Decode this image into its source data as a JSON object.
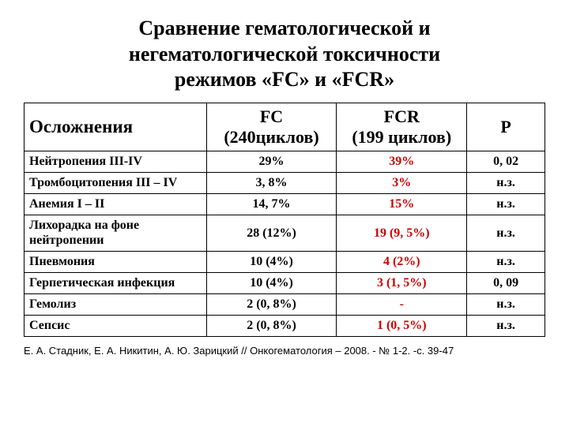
{
  "title": {
    "line1": "Сравнение гематологической и",
    "line2": "негематологической токсичности",
    "line3": "режимов «FC» и «FCR»"
  },
  "headers": {
    "complication": "Осложнения",
    "fc_line1": "FC",
    "fc_line2": "(240циклов)",
    "fcr_line1": "FCR",
    "fcr_line2": "(199 циклов)",
    "p": "Р"
  },
  "rows": [
    {
      "label": "Нейтропения III-IV",
      "fc": "29%",
      "fcr": "39%",
      "p": "0, 02"
    },
    {
      "label": "Тромбоцитопения III – IV",
      "fc": "3, 8%",
      "fcr": "3%",
      "p": "н.з."
    },
    {
      "label": "Анемия I – II",
      "fc": "14, 7%",
      "fcr": "15%",
      "p": "н.з."
    },
    {
      "label_html": "Лихорадка на фоне нейтропении",
      "justify": true,
      "fc": "28 (12%)",
      "fcr": "19 (9, 5%)",
      "p": "н.з."
    },
    {
      "label": "Пневмония",
      "fc": "10 (4%)",
      "fcr": "4 (2%)",
      "p": "н.з."
    },
    {
      "label": "Герпетическая инфекция",
      "fc": "10 (4%)",
      "fcr": "3 (1, 5%)",
      "p": "0, 09"
    },
    {
      "label": "Гемолиз",
      "fc": "2 (0, 8%)",
      "fcr": "-",
      "p": "н.з."
    },
    {
      "label": "Сепсис",
      "fc": "2 (0, 8%)",
      "fcr": "1 (0, 5%)",
      "p": "н.з."
    }
  ],
  "citation": "Е. А. Стадник, Е. А. Никитин, А. Ю. Зарицкий // Онкогематология – 2008. - № 1-2. -с. 39-47"
}
